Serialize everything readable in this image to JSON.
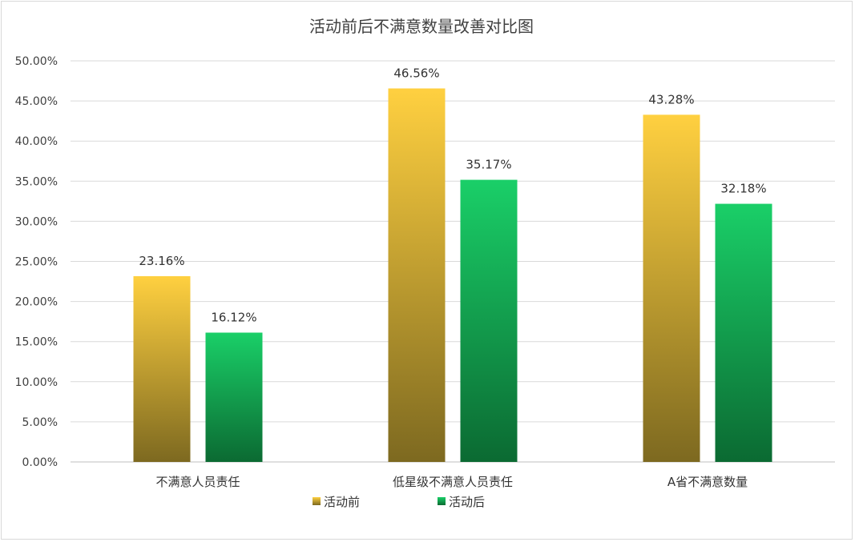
{
  "chart_data": {
    "type": "bar",
    "title": "活动前后不满意数量改善对比图",
    "categories": [
      "不满意人员责任",
      "低星级不满意人员责任",
      "A省不满意数量"
    ],
    "series": [
      {
        "name": "活动前",
        "values": [
          23.16,
          46.56,
          43.28
        ],
        "labels": [
          "23.16%",
          "46.56%",
          "43.28%"
        ],
        "color_top": "#ffd040",
        "color_bottom": "#7d6920"
      },
      {
        "name": "活动后",
        "values": [
          16.12,
          35.17,
          32.18
        ],
        "labels": [
          "16.12%",
          "35.17%",
          "32.18%"
        ],
        "color_top": "#1acf68",
        "color_bottom": "#0b6a32"
      }
    ],
    "ylim": [
      0,
      50
    ],
    "yticks": [
      "0.00%",
      "5.00%",
      "10.00%",
      "15.00%",
      "20.00%",
      "25.00%",
      "30.00%",
      "35.00%",
      "40.00%",
      "45.00%",
      "50.00%"
    ],
    "grid": true,
    "legend": "bottom",
    "xlabel": "",
    "ylabel": ""
  }
}
